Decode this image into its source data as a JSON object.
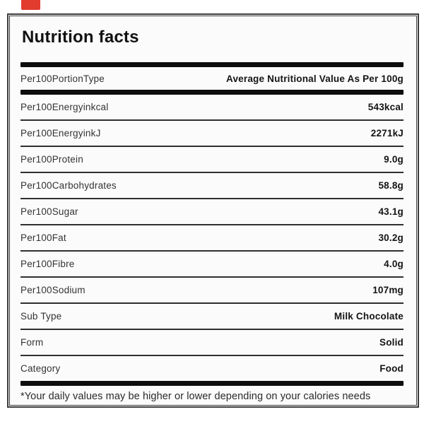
{
  "brand_tab": {
    "color": "#e23c2e"
  },
  "title": "Nutrition facts",
  "header": {
    "label": "Per100PortionType",
    "value": "Average Nutritional Value As Per 100g"
  },
  "rows": [
    {
      "label": "Per100Energyinkcal",
      "value": "543kcal"
    },
    {
      "label": "Per100EnergyinkJ",
      "value": "2271kJ"
    },
    {
      "label": "Per100Protein",
      "value": "9.0g"
    },
    {
      "label": "Per100Carbohydrates",
      "value": "58.8g"
    },
    {
      "label": "Per100Sugar",
      "value": "43.1g"
    },
    {
      "label": "Per100Fat",
      "value": "30.2g"
    },
    {
      "label": "Per100Fibre",
      "value": "4.0g"
    },
    {
      "label": "Per100Sodium",
      "value": "107mg"
    },
    {
      "label": "Sub Type",
      "value": "Milk Chocolate"
    },
    {
      "label": "Form",
      "value": "Solid"
    },
    {
      "label": "Category",
      "value": "Food"
    }
  ],
  "footnote": "*Your daily values may be higher or lower depending on your calories needs"
}
